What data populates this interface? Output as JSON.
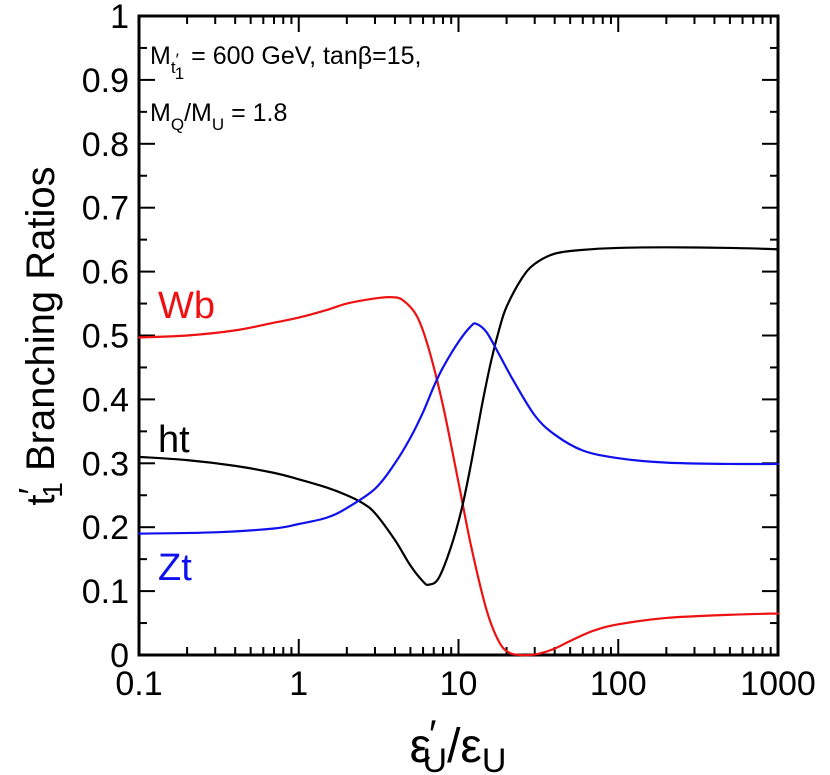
{
  "chart_data": {
    "type": "line",
    "xscale": "log",
    "xlim": [
      0.1,
      1000
    ],
    "ylim": [
      0,
      1
    ],
    "xticks": [
      "0.1",
      "1",
      "10",
      "100",
      "1000"
    ],
    "xtick_values": [
      0.1,
      1,
      10,
      100,
      1000
    ],
    "yticks": [
      "0",
      "0.1",
      "0.2",
      "0.3",
      "0.4",
      "0.5",
      "0.6",
      "0.7",
      "0.8",
      "0.9",
      "1"
    ],
    "ytick_values": [
      0,
      0.1,
      0.2,
      0.3,
      0.4,
      0.5,
      0.6,
      0.7,
      0.8,
      0.9,
      1.0
    ],
    "xlabel": {
      "eps": "ε",
      "prime": "′",
      "sub": "U",
      "slash": "/"
    },
    "ylabel": {
      "t": "t",
      "prime": "′",
      "sub": "1",
      "rest": " Branching Ratios"
    },
    "annotation": {
      "line1_prefix": "M",
      "line1_sub": "t",
      "line1_subprime": "′",
      "line1_subsub": "1",
      "line1_rest": " = 600 GeV,   tanβ=15,",
      "line2_m1": "M",
      "line2_sub1": "Q",
      "line2_slash": "/M",
      "line2_sub2": "U",
      "line2_rest": " = 1.8"
    },
    "series": [
      {
        "name": "Wb",
        "color": "#ee1111",
        "x": [
          0.1,
          0.2,
          0.4,
          0.7,
          1.0,
          1.5,
          2.0,
          3.0,
          3.8,
          4.5,
          5.5,
          6.5,
          8.0,
          10,
          12,
          15,
          18,
          21,
          25,
          28,
          32,
          40,
          50,
          70,
          100,
          200,
          500,
          1000
        ],
        "values": [
          0.497,
          0.5,
          0.508,
          0.52,
          0.528,
          0.54,
          0.55,
          0.558,
          0.56,
          0.555,
          0.53,
          0.48,
          0.39,
          0.27,
          0.17,
          0.07,
          0.02,
          0.003,
          0.0,
          0.0,
          0.002,
          0.01,
          0.022,
          0.038,
          0.048,
          0.058,
          0.063,
          0.065
        ]
      },
      {
        "name": "ht",
        "color": "#000000",
        "x": [
          0.1,
          0.2,
          0.4,
          0.7,
          1.0,
          1.5,
          2.0,
          2.5,
          3.0,
          4.0,
          5.0,
          6.0,
          6.5,
          7.5,
          9.0,
          10.5,
          12,
          14,
          16,
          18,
          20,
          25,
          30,
          40,
          60,
          100,
          200,
          500,
          1000
        ],
        "values": [
          0.31,
          0.305,
          0.296,
          0.285,
          0.275,
          0.262,
          0.25,
          0.238,
          0.222,
          0.18,
          0.14,
          0.115,
          0.11,
          0.12,
          0.17,
          0.23,
          0.3,
          0.39,
          0.46,
          0.51,
          0.545,
          0.59,
          0.612,
          0.628,
          0.634,
          0.637,
          0.638,
          0.637,
          0.635
        ]
      },
      {
        "name": "Zt",
        "color": "#1010ee",
        "x": [
          0.1,
          0.3,
          0.7,
          1.0,
          1.5,
          2.0,
          3.0,
          4.0,
          5.0,
          6.0,
          7.0,
          8.0,
          10,
          12,
          13,
          15,
          18,
          22,
          30,
          40,
          60,
          100,
          200,
          500,
          1000
        ],
        "values": [
          0.19,
          0.192,
          0.198,
          0.205,
          0.215,
          0.23,
          0.26,
          0.3,
          0.34,
          0.38,
          0.42,
          0.45,
          0.49,
          0.515,
          0.518,
          0.505,
          0.47,
          0.43,
          0.375,
          0.345,
          0.32,
          0.308,
          0.301,
          0.299,
          0.299
        ]
      }
    ],
    "series_labels": [
      {
        "name": "Wb",
        "text": "Wb",
        "color": "#ee1111"
      },
      {
        "name": "ht",
        "text": "ht",
        "color": "#000000"
      },
      {
        "name": "Zt",
        "text": "Zt",
        "color": "#1010ee"
      }
    ]
  }
}
